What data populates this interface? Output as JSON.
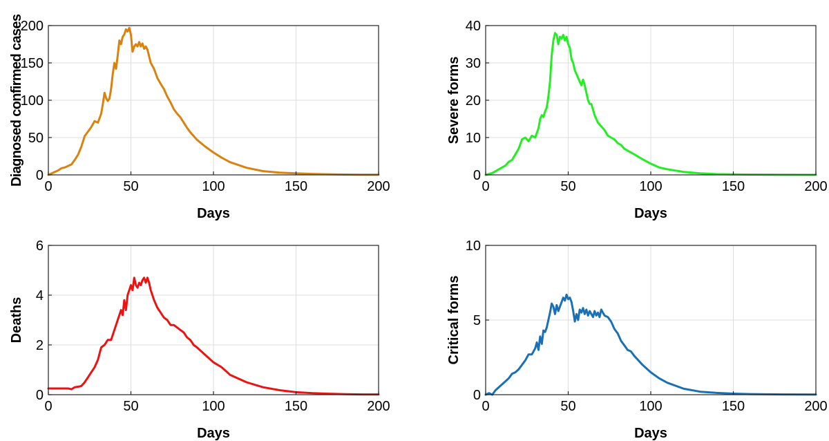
{
  "chart_data": [
    {
      "type": "line",
      "xlabel": "Days",
      "ylabel": "Diagnosed confirmed cases",
      "xlim": [
        0,
        200
      ],
      "ylim": [
        0,
        200
      ],
      "xticks": [
        0,
        50,
        100,
        150,
        200
      ],
      "yticks": [
        0,
        50,
        100,
        150,
        200
      ],
      "grid": true,
      "color": "#d9820f",
      "series": [
        {
          "x": [
            0,
            3,
            6,
            8,
            10,
            12,
            14,
            16,
            18,
            20,
            22,
            24,
            26,
            28,
            30,
            32,
            33,
            34,
            35,
            36,
            37,
            38,
            39,
            40,
            41,
            42,
            43,
            44,
            45,
            46,
            47,
            48,
            49,
            50,
            51,
            52,
            53,
            54,
            55,
            56,
            57,
            58,
            59,
            60,
            62,
            64,
            66,
            68,
            70,
            72,
            74,
            76,
            78,
            80,
            82,
            84,
            86,
            88,
            90,
            95,
            100,
            105,
            110,
            120,
            130,
            140,
            150,
            160,
            170,
            180,
            190,
            200
          ],
          "y": [
            0,
            3,
            6,
            9,
            10,
            12,
            14,
            20,
            27,
            38,
            52,
            58,
            64,
            72,
            70,
            82,
            95,
            110,
            103,
            99,
            102,
            115,
            135,
            150,
            142,
            160,
            180,
            175,
            185,
            188,
            195,
            192,
            197,
            188,
            165,
            172,
            175,
            172,
            178,
            172,
            176,
            169,
            172,
            168,
            150,
            142,
            130,
            122,
            115,
            105,
            97,
            88,
            82,
            77,
            70,
            63,
            57,
            52,
            47,
            38,
            30,
            23,
            17,
            9.5,
            5,
            3,
            2,
            1.3,
            0.8,
            0.5,
            0.3,
            0.2
          ]
        }
      ]
    },
    {
      "type": "line",
      "xlabel": "Days",
      "ylabel": "Severe forms",
      "xlim": [
        0,
        200
      ],
      "ylim": [
        0,
        40
      ],
      "xticks": [
        0,
        50,
        100,
        150,
        200
      ],
      "yticks": [
        0,
        10,
        20,
        30,
        40
      ],
      "grid": true,
      "color": "#22ee22",
      "series": [
        {
          "x": [
            0,
            4,
            8,
            10,
            12,
            14,
            16,
            18,
            20,
            22,
            24,
            26,
            28,
            30,
            32,
            33,
            34,
            35,
            36,
            37,
            38,
            39,
            40,
            41,
            42,
            43,
            44,
            45,
            46,
            47,
            48,
            49,
            50,
            51,
            52,
            53,
            54,
            55,
            56,
            57,
            58,
            59,
            60,
            61,
            62,
            63,
            64,
            65,
            66,
            68,
            70,
            72,
            74,
            76,
            78,
            80,
            82,
            84,
            86,
            88,
            90,
            95,
            100,
            105,
            110,
            120,
            130,
            140,
            150,
            160,
            180,
            200
          ],
          "y": [
            0,
            0.5,
            1.5,
            2,
            2.5,
            3.5,
            4,
            5.5,
            7,
            9.5,
            10,
            9,
            10.5,
            10,
            12.5,
            15,
            16,
            15.5,
            17,
            18,
            21,
            25,
            32,
            36,
            38,
            37.5,
            35,
            37,
            36.5,
            37.5,
            36,
            37,
            35,
            34,
            31,
            30,
            28,
            27,
            26,
            25,
            24,
            25.5,
            24,
            22,
            20,
            19,
            19,
            17.5,
            16,
            14,
            13,
            12,
            10.5,
            10,
            9.5,
            8.5,
            8,
            7,
            6.5,
            6,
            5.5,
            4.2,
            3,
            2,
            1.5,
            0.8,
            0.4,
            0.2,
            0.15,
            0.1,
            0.05,
            0.02
          ]
        }
      ]
    },
    {
      "type": "line",
      "xlabel": "Days",
      "ylabel": "Deaths",
      "xlim": [
        0,
        200
      ],
      "ylim": [
        0,
        6
      ],
      "xticks": [
        0,
        50,
        100,
        150,
        200
      ],
      "yticks": [
        0,
        2,
        4,
        6
      ],
      "grid": true,
      "color": "#ee1111",
      "series": [
        {
          "x": [
            0,
            4,
            8,
            12,
            14,
            16,
            18,
            20,
            22,
            24,
            26,
            28,
            30,
            32,
            34,
            36,
            38,
            40,
            42,
            44,
            45,
            46,
            47,
            48,
            49,
            50,
            51,
            52,
            53,
            54,
            55,
            56,
            57,
            58,
            59,
            60,
            61,
            62,
            63,
            64,
            66,
            68,
            70,
            72,
            74,
            76,
            78,
            80,
            82,
            84,
            86,
            88,
            90,
            95,
            100,
            105,
            110,
            120,
            130,
            140,
            150,
            160,
            170,
            180,
            190,
            200
          ],
          "y": [
            0.25,
            0.25,
            0.25,
            0.25,
            0.22,
            0.3,
            0.32,
            0.35,
            0.5,
            0.7,
            0.9,
            1.1,
            1.4,
            1.9,
            2.0,
            2.2,
            2.2,
            2.6,
            3.0,
            3.4,
            3.2,
            3.8,
            3.4,
            4.0,
            4.2,
            4.4,
            4.2,
            4.7,
            4.4,
            4.3,
            4.5,
            4.4,
            4.6,
            4.7,
            4.5,
            4.7,
            4.5,
            4.2,
            4.0,
            3.8,
            3.5,
            3.3,
            3.1,
            3.0,
            2.8,
            2.8,
            2.7,
            2.6,
            2.5,
            2.3,
            2.2,
            2.0,
            1.9,
            1.6,
            1.3,
            1.1,
            0.8,
            0.5,
            0.3,
            0.18,
            0.1,
            0.06,
            0.04,
            0.02,
            0.01,
            0.01
          ]
        }
      ]
    },
    {
      "type": "line",
      "xlabel": "Days",
      "ylabel": "Critical forms",
      "xlim": [
        0,
        200
      ],
      "ylim": [
        0,
        10
      ],
      "xticks": [
        0,
        50,
        100,
        150,
        200
      ],
      "yticks": [
        0,
        5,
        10
      ],
      "grid": true,
      "color": "#1a6fb5",
      "series": [
        {
          "x": [
            0,
            2,
            4,
            6,
            8,
            10,
            12,
            14,
            16,
            18,
            20,
            22,
            24,
            26,
            28,
            30,
            31,
            32,
            33,
            34,
            35,
            36,
            37,
            38,
            39,
            40,
            41,
            42,
            43,
            44,
            45,
            46,
            47,
            48,
            49,
            50,
            51,
            52,
            53,
            54,
            55,
            56,
            57,
            58,
            59,
            60,
            61,
            62,
            63,
            64,
            65,
            66,
            67,
            68,
            69,
            70,
            71,
            72,
            74,
            76,
            78,
            80,
            82,
            84,
            86,
            88,
            90,
            95,
            100,
            105,
            110,
            120,
            130,
            140,
            150,
            160,
            180,
            200
          ],
          "y": [
            0,
            0.1,
            0,
            0.3,
            0.5,
            0.7,
            0.9,
            1.1,
            1.4,
            1.5,
            1.7,
            2.0,
            2.3,
            2.7,
            2.7,
            3.1,
            3.5,
            3.0,
            3.9,
            3.4,
            4.3,
            4.2,
            4.5,
            5.0,
            5.5,
            6.1,
            5.9,
            5.4,
            6.0,
            5.6,
            5.9,
            6.2,
            6.5,
            6.3,
            6.7,
            6.4,
            6.5,
            6.2,
            5.6,
            4.9,
            5.4,
            5.0,
            5.7,
            5.5,
            5.8,
            5.4,
            5.7,
            5.3,
            5.6,
            5.4,
            5.2,
            5.6,
            5.3,
            5.5,
            5.2,
            5.7,
            5.5,
            5.3,
            5.2,
            4.9,
            4.4,
            4.1,
            3.6,
            3.3,
            3.0,
            2.9,
            2.6,
            2.0,
            1.5,
            1.1,
            0.8,
            0.4,
            0.2,
            0.12,
            0.07,
            0.04,
            0.02,
            0.01
          ]
        }
      ]
    }
  ]
}
